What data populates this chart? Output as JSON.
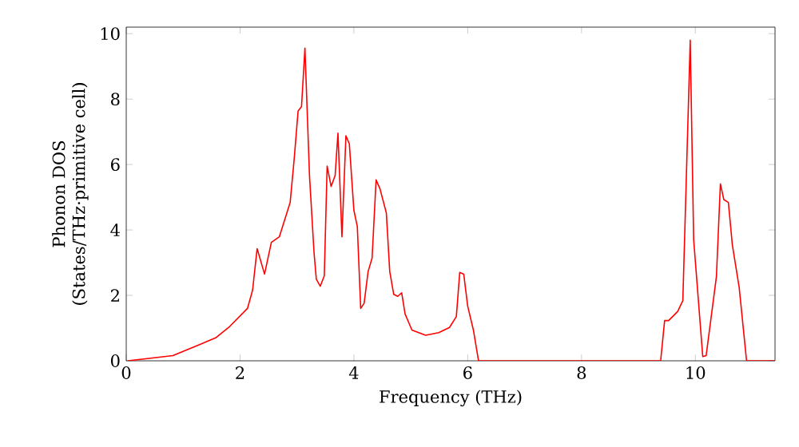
{
  "chart_data": {
    "type": "line",
    "xlabel": "Frequency (THz)",
    "ylabel": "Phonon DOS\n(States/THz·primitive cell)",
    "xlim": [
      0,
      11.4
    ],
    "ylim": [
      0,
      10.2
    ],
    "xticks": [
      0,
      2,
      4,
      6,
      8,
      10
    ],
    "yticks": [
      0,
      2,
      4,
      6,
      8,
      10
    ],
    "grid": false,
    "marker": "none",
    "line_style": "solid",
    "series": [
      {
        "color": "#ff0000",
        "x": [
          0.03,
          0.82,
          1.57,
          1.8,
          2.13,
          2.22,
          2.3,
          2.43,
          2.55,
          2.69,
          2.88,
          2.95,
          3.02,
          3.08,
          3.14,
          3.22,
          3.3,
          3.34,
          3.41,
          3.48,
          3.53,
          3.6,
          3.67,
          3.72,
          3.79,
          3.86,
          3.92,
          4.0,
          4.06,
          4.12,
          4.18,
          4.25,
          4.32,
          4.39,
          4.46,
          4.57,
          4.63,
          4.7,
          4.77,
          4.84,
          4.9,
          5.02,
          5.26,
          5.49,
          5.68,
          5.8,
          5.86,
          5.93,
          6.0,
          6.1,
          6.19,
          9.39,
          9.46,
          9.53,
          9.69,
          9.78,
          9.91,
          9.97,
          10.13,
          10.19,
          10.37,
          10.44,
          10.5,
          10.58,
          10.65,
          10.77,
          10.9,
          11.4
        ],
        "values": [
          0,
          0.16,
          0.7,
          1.02,
          1.6,
          2.16,
          3.43,
          2.65,
          3.62,
          3.79,
          4.84,
          6.15,
          7.64,
          7.77,
          9.56,
          5.66,
          3.3,
          2.49,
          2.28,
          2.6,
          5.95,
          5.33,
          5.66,
          6.96,
          3.79,
          6.88,
          6.63,
          4.6,
          4.11,
          1.6,
          1.76,
          2.73,
          3.14,
          5.53,
          5.25,
          4.52,
          2.73,
          2.03,
          1.97,
          2.08,
          1.43,
          0.94,
          0.78,
          0.86,
          1.02,
          1.35,
          2.7,
          2.65,
          1.67,
          0.94,
          0,
          0,
          1.23,
          1.23,
          1.51,
          1.84,
          9.8,
          3.71,
          0.13,
          0.16,
          2.57,
          5.41,
          4.93,
          4.84,
          3.54,
          2.24,
          0,
          0
        ]
      }
    ]
  }
}
